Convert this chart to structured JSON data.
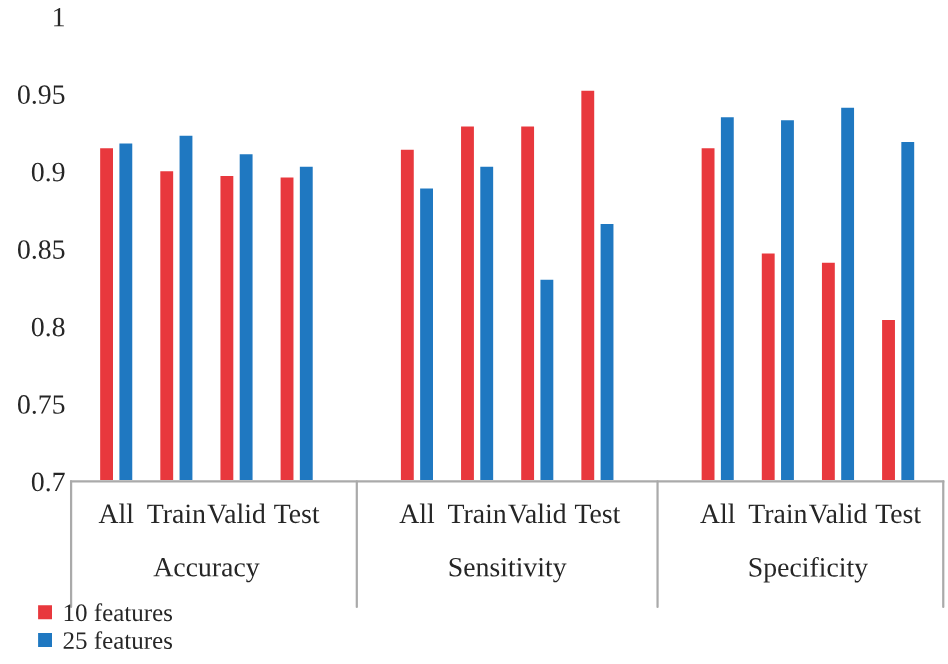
{
  "chart_data": {
    "type": "bar",
    "categories": [
      "All",
      "Train",
      "Valid",
      "Test",
      "All",
      "Train",
      "Valid",
      "Test",
      "All",
      "Train",
      "Valid",
      "Test"
    ],
    "series": [
      {
        "name": "10 features",
        "color": "#e8383d",
        "values": [
          0.916,
          0.901,
          0.898,
          0.897,
          0.915,
          0.93,
          0.93,
          0.953,
          0.916,
          0.848,
          0.842,
          0.805
        ]
      },
      {
        "name": "25 features",
        "color": "#1f78c1",
        "values": [
          0.919,
          0.924,
          0.912,
          0.904,
          0.89,
          0.904,
          0.831,
          0.867,
          0.936,
          0.934,
          0.942,
          0.92
        ]
      }
    ],
    "annotations": [
      "Accuracy",
      "Sensitivity",
      "Specificity"
    ],
    "ylim": [
      0.7,
      1
    ],
    "yticks": [
      0.7,
      0.75,
      0.8,
      0.85,
      0.9,
      0.95,
      1
    ],
    "grid": false,
    "legend": "bottom left",
    "marker": "square"
  }
}
